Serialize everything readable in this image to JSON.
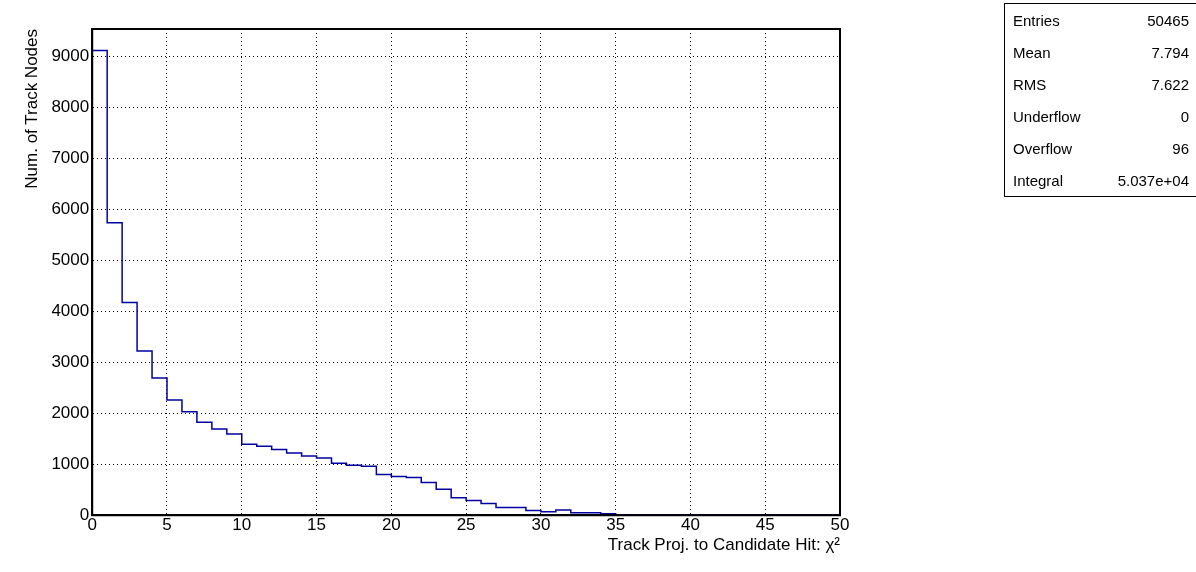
{
  "chart_data": {
    "type": "histogram",
    "xlabel": "Track Proj. to Candidate Hit: χ²",
    "ylabel": "Num. of Track Nodes",
    "bins": [
      0,
      1,
      2,
      3,
      4,
      5,
      6,
      7,
      8,
      9,
      10,
      11,
      12,
      13,
      14,
      15,
      16,
      17,
      18,
      19,
      20,
      21,
      22,
      23,
      24,
      25,
      26,
      27,
      28,
      29,
      30,
      31,
      32,
      33,
      34,
      35,
      36,
      37,
      38,
      39,
      40,
      41,
      42,
      43,
      44,
      45,
      46,
      47,
      48,
      49,
      50
    ],
    "values": [
      9110,
      5730,
      4170,
      3220,
      2690,
      2260,
      2030,
      1820,
      1690,
      1590,
      1390,
      1350,
      1290,
      1220,
      1160,
      1120,
      1020,
      980,
      960,
      800,
      760,
      740,
      640,
      510,
      340,
      290,
      230,
      150,
      150,
      90,
      70,
      100,
      50,
      50,
      30,
      0,
      0,
      0,
      0,
      0,
      0,
      0,
      0,
      0,
      0,
      0,
      0,
      0,
      0,
      0
    ],
    "color": "#0000a0",
    "xlim": [
      0,
      50
    ],
    "xticks": [
      0,
      5,
      10,
      15,
      20,
      25,
      30,
      35,
      40,
      45,
      50
    ],
    "ylim": [
      0,
      9530
    ],
    "yticks": [
      0,
      1000,
      2000,
      3000,
      4000,
      5000,
      6000,
      7000,
      8000,
      9000
    ],
    "grid": true,
    "annotations": [
      "Entries",
      "50465",
      "Mean",
      "7.794",
      "RMS",
      "7.622",
      "Underflow",
      "0",
      "Overflow",
      "96",
      "Integral",
      "5.037e+04"
    ]
  }
}
